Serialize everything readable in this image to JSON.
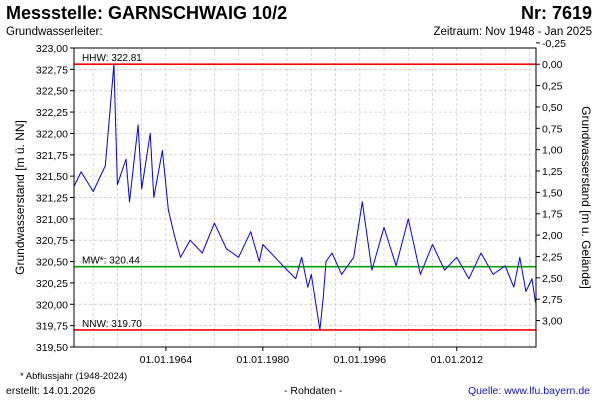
{
  "header": {
    "title": "Messstelle: GARNSCHWAIG 10/2",
    "number": "Nr: 7619",
    "aquifer": "Grundwasserleiter:",
    "period": "Zeitraum: Nov 1948 - Jan 2025"
  },
  "footer": {
    "footnote": "* Abflussjahr (1948-2024)",
    "created": "erstellt:  14.01.2026",
    "rawdata": "- Rohdaten -",
    "source": "Quelle: www.lfu.bayern.de"
  },
  "colors": {
    "series": "#0000ee",
    "extreme": "#ff0000",
    "mean": "#00a000",
    "grid": "#c8c8c8",
    "source_link": "#1010cc"
  },
  "chart_data": {
    "type": "line",
    "ylabel": "Grundwasserstand [m ü. NN]",
    "ylabel_right": "Grundwasserstand [m u. Gelände]",
    "ylim": [
      319.5,
      323.0
    ],
    "y_ticks": [
      "323,00",
      "322,75",
      "322,50",
      "322,25",
      "322,00",
      "321,75",
      "321,50",
      "321,25",
      "321,00",
      "320,75",
      "320,50",
      "320,25",
      "320,00",
      "319,75",
      "319,50"
    ],
    "y2_ticks": [
      "-0,25",
      "0,00",
      "0,25",
      "0,50",
      "0,75",
      "1,00",
      "1,25",
      "1,50",
      "1,75",
      "2,00",
      "2,25",
      "2,50",
      "2,75",
      "3,00"
    ],
    "x_ticks": [
      "01.01.1964",
      "01.01.1980",
      "01.01.1996",
      "01.01.2012"
    ],
    "xlim": [
      "1948-11-01",
      "2025-01-31"
    ],
    "grid": true,
    "reference_lines": [
      {
        "label": "HHW: 322.81",
        "value": 322.81
      },
      {
        "label": "MW*: 320.44",
        "value": 320.44
      },
      {
        "label": "NNW: 319.70",
        "value": 319.7
      }
    ],
    "series": [
      {
        "x": [
          "1948-11",
          "1950-01",
          "1952-01",
          "1954-01",
          "1955-06",
          "1956-01",
          "1957-06",
          "1958-01",
          "1959-06",
          "1960-01",
          "1961-06",
          "1962-01",
          "1963-06",
          "1964-06",
          "1965-06",
          "1966-06",
          "1968-01",
          "1970-01",
          "1972-01",
          "1974-01",
          "1976-01",
          "1978-01",
          "1979-06",
          "1980-01",
          "1982-01",
          "1984-01",
          "1985-06",
          "1986-06",
          "1987-06",
          "1988-01",
          "1989-06",
          "1990-01",
          "1990-06",
          "1991-06",
          "1993-01",
          "1995-01",
          "1996-06",
          "1998-01",
          "2000-01",
          "2002-01",
          "2004-01",
          "2006-01",
          "2008-01",
          "2010-01",
          "2012-01",
          "2014-01",
          "2016-01",
          "2018-01",
          "2020-01",
          "2021-06",
          "2022-06",
          "2023-06",
          "2024-06",
          "2025-01"
        ],
        "y": [
          321.38,
          321.55,
          321.32,
          321.62,
          322.81,
          321.4,
          321.7,
          321.2,
          322.1,
          321.35,
          322.0,
          321.25,
          321.8,
          321.1,
          320.8,
          320.55,
          320.75,
          320.6,
          320.95,
          320.65,
          320.55,
          320.85,
          320.5,
          320.7,
          320.55,
          320.4,
          320.3,
          320.55,
          320.2,
          320.35,
          319.7,
          320.1,
          320.5,
          320.6,
          320.35,
          320.55,
          321.2,
          320.4,
          320.9,
          320.45,
          321.0,
          320.35,
          320.7,
          320.4,
          320.55,
          320.3,
          320.6,
          320.35,
          320.45,
          320.2,
          320.55,
          320.15,
          320.3,
          320.02
        ]
      }
    ]
  }
}
